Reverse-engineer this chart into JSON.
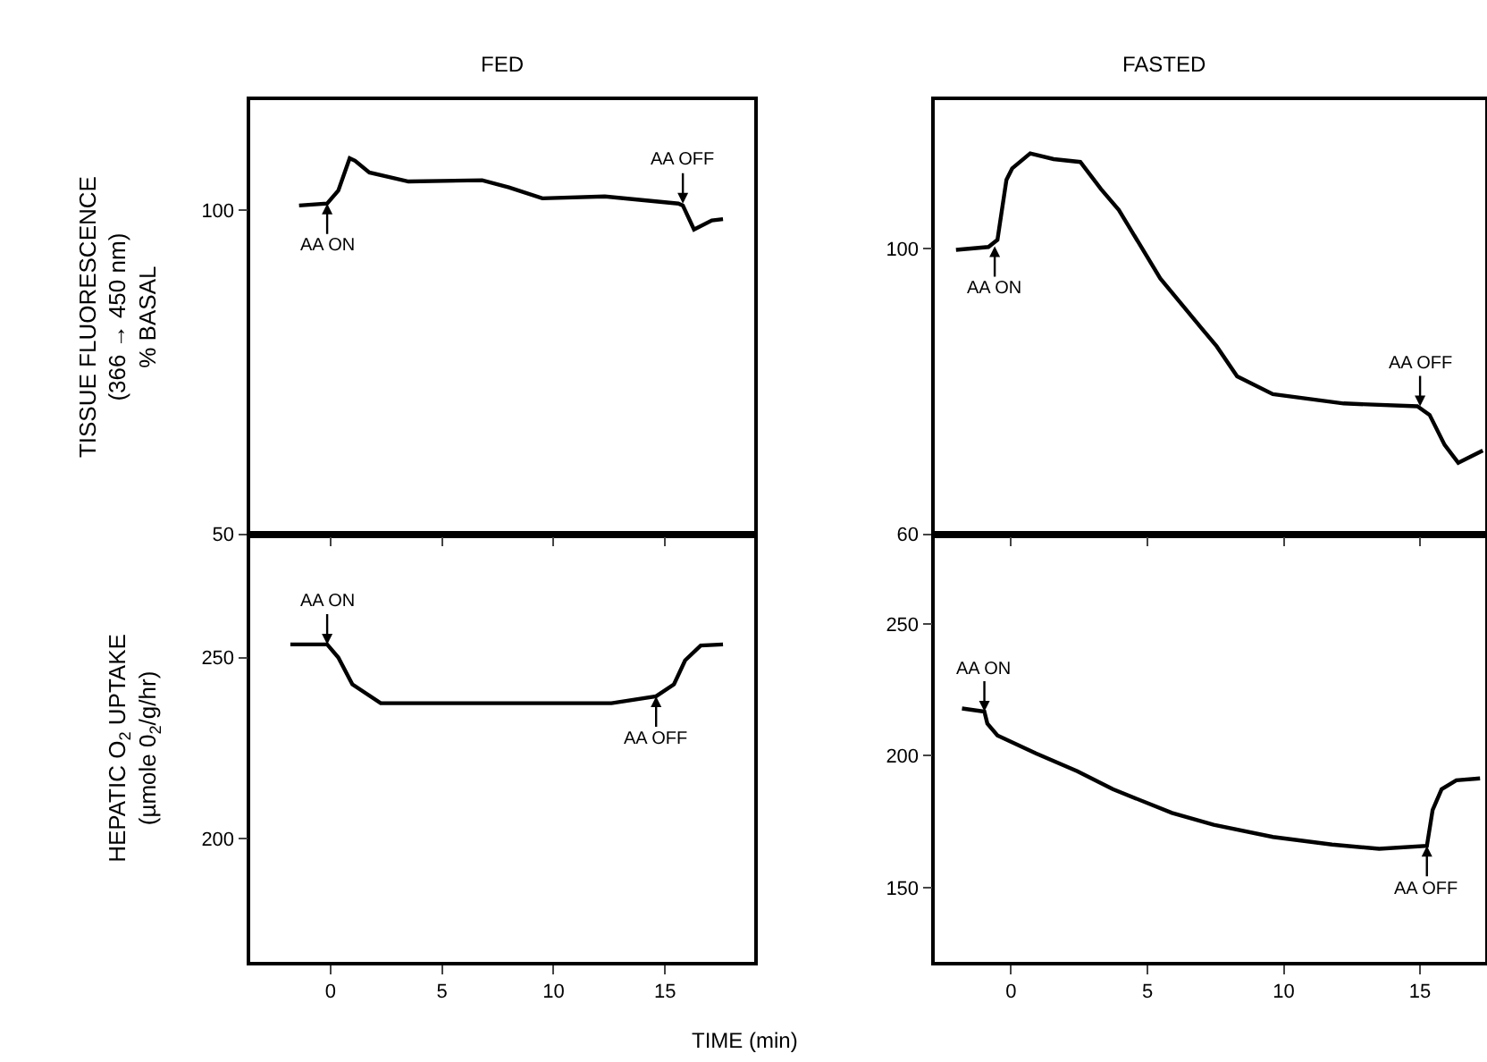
{
  "chart_data": [
    {
      "type": "line",
      "title": "FED",
      "ylabel": "TISSUE FLUORESCENCE\n(366 → 450 nm)\n% BASAL",
      "xlim": [
        -3.6,
        19
      ],
      "xticks": [
        0,
        5,
        10,
        15
      ],
      "ylim": [
        50,
        117
      ],
      "yticks": [
        50,
        100
      ],
      "tick_labels": "y",
      "grid": false,
      "series": [
        {
          "color": "#000000",
          "x": [
            -1.41,
            -0.15,
            0.35,
            0.86,
            1.1,
            1.74,
            3.5,
            6.8,
            8.0,
            9.5,
            12.3,
            15.6,
            15.8,
            16.3,
            17.1,
            17.6
          ],
          "values": [
            100.7,
            101,
            103,
            108,
            107.6,
            105.8,
            104.4,
            104.6,
            103.5,
            101.8,
            102.1,
            101,
            100.7,
            97,
            98.4,
            98.6
          ]
        }
      ],
      "annotations": [
        {
          "text": "AA ON",
          "x": -0.15,
          "y": 101
        },
        {
          "text": "AA OFF",
          "x": 15.8,
          "y": 101
        }
      ]
    },
    {
      "type": "line",
      "title": "FASTED",
      "xlim": [
        -2.8,
        17.4
      ],
      "xticks": [
        0,
        5,
        10,
        15
      ],
      "ylim": [
        60,
        120.8
      ],
      "yticks": [
        60,
        100
      ],
      "tick_labels": "y",
      "grid": false,
      "series": [
        {
          "color": "#000000",
          "x": [
            -2.02,
            -0.83,
            -0.5,
            -0.17,
            0.04,
            0.7,
            1.56,
            2.54,
            3.3,
            3.95,
            5.47,
            6.99,
            7.54,
            8.29,
            9.6,
            12.2,
            14.9,
            15.35,
            15.9,
            16.4,
            17.3
          ],
          "values": [
            99.8,
            100.2,
            101.2,
            109.6,
            111.2,
            113.3,
            112.5,
            112.1,
            108.3,
            105.4,
            95.8,
            88.8,
            86.3,
            82.1,
            79.6,
            78.3,
            77.9,
            76.7,
            72.5,
            70,
            71.7
          ]
        }
      ],
      "annotations": [
        {
          "text": "AA ON",
          "x": -0.6,
          "y": 100.3
        },
        {
          "text": "AA OFF",
          "x": 15.0,
          "y": 77.9
        }
      ]
    },
    {
      "type": "line",
      "ylabel": "HEPATIC O$_{2}$ UPTAKE\n(µmole 0$_{2}$/g/hr)",
      "xlabel": "TIME (min)",
      "xlim": [
        -3.6,
        19
      ],
      "xticks": [
        0,
        5,
        10,
        15
      ],
      "ylim": [
        166,
        284
      ],
      "yticks": [
        200,
        250
      ],
      "grid": false,
      "series": [
        {
          "color": "#000000",
          "x": [
            -1.8,
            -0.15,
            0.35,
            0.98,
            2.25,
            7.6,
            12.6,
            14.6,
            15.4,
            15.9,
            16.6,
            17.6
          ],
          "values": [
            253.6,
            253.6,
            250,
            242.6,
            237.4,
            237.4,
            237.4,
            239.3,
            242.6,
            249.2,
            253.3,
            253.6
          ]
        }
      ],
      "annotations": [
        {
          "text": "AA ON",
          "x": -0.15,
          "y": 253.6
        },
        {
          "text": "AA OFF",
          "x": 14.6,
          "y": 239.3
        }
      ]
    },
    {
      "type": "line",
      "xlim": [
        -2.8,
        17.4
      ],
      "xticks": [
        0,
        5,
        10,
        15
      ],
      "ylim": [
        121.7,
        284
      ],
      "yticks": [
        150,
        200,
        250
      ],
      "grid": false,
      "series": [
        {
          "color": "#000000",
          "x": [
            -1.8,
            -0.98,
            -0.87,
            -0.5,
            0.91,
            2.43,
            3.73,
            5.9,
            7.43,
            9.6,
            11.77,
            13.5,
            15.25,
            15.46,
            15.79,
            16.33,
            17.2
          ],
          "values": [
            217.9,
            216.7,
            212.2,
            207.7,
            200.9,
            194.1,
            187.3,
            178.3,
            173.8,
            169.2,
            166.3,
            164.7,
            165.8,
            179.4,
            187.3,
            190.7,
            191.4
          ]
        }
      ],
      "annotations": [
        {
          "text": "AA ON",
          "x": -0.98,
          "y": 216.7
        },
        {
          "text": "AA OFF",
          "x": 15.25,
          "y": 165.8
        }
      ]
    }
  ]
}
